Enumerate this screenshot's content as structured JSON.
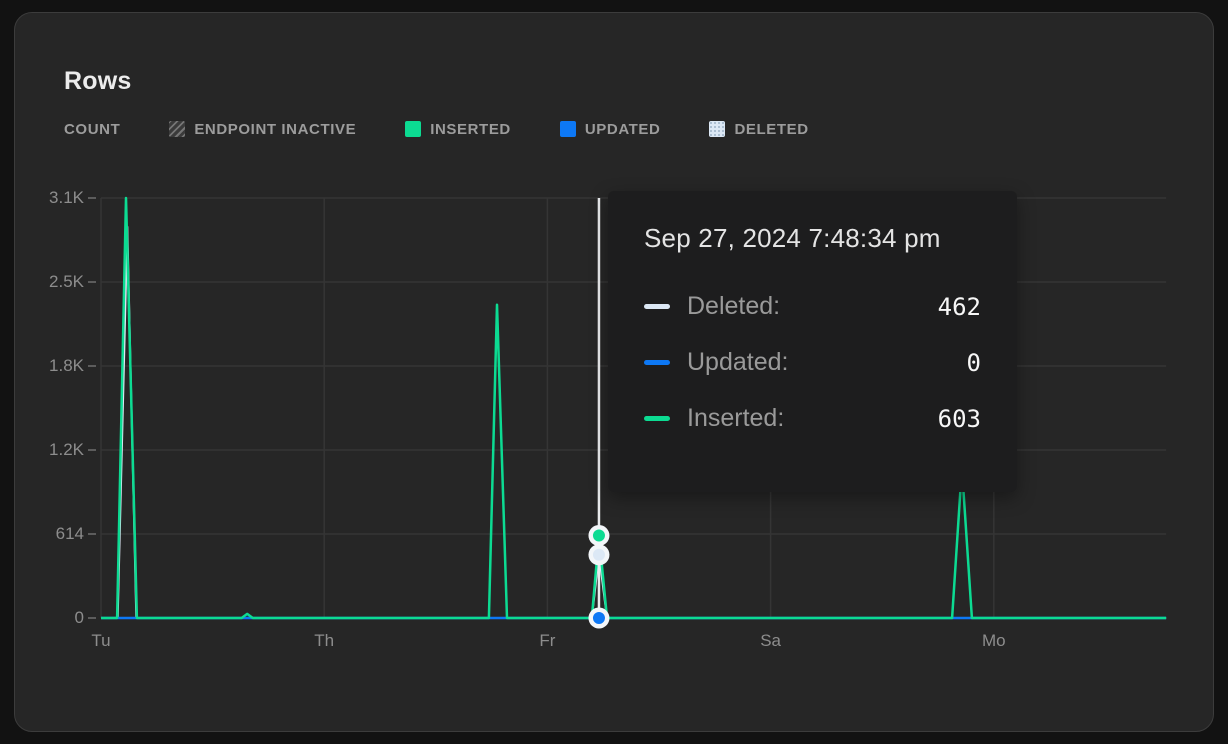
{
  "title": "Rows",
  "legend": {
    "items": [
      {
        "label": "COUNT",
        "swatch": "none",
        "color": null
      },
      {
        "label": "ENDPOINT INACTIVE",
        "swatch": "hatch",
        "color": "#757575"
      },
      {
        "label": "INSERTED",
        "swatch": "solid",
        "color": "#0cdb92"
      },
      {
        "label": "UPDATED",
        "swatch": "solid",
        "color": "#0d78f5"
      },
      {
        "label": "DELETED",
        "swatch": "dots",
        "color": "#dce8f5"
      }
    ]
  },
  "tooltip": {
    "title": "Sep 27, 2024 7:48:34 pm",
    "rows": [
      {
        "label": "Deleted:",
        "value": "462",
        "color": "#dce8f5"
      },
      {
        "label": "Updated:",
        "value": "0",
        "color": "#0d78f5"
      },
      {
        "label": "Inserted:",
        "value": "603",
        "color": "#0cdb92"
      }
    ]
  },
  "chart_data": {
    "type": "line",
    "title": "Rows",
    "xlabel": "",
    "ylabel": "COUNT",
    "grid": true,
    "legend_position": "top",
    "ylim": [
      0,
      3070
    ],
    "y_ticks": [
      {
        "v": 0,
        "label": "0"
      },
      {
        "v": 614,
        "label": "614"
      },
      {
        "v": 1228,
        "label": "1.2K"
      },
      {
        "v": 1842,
        "label": "1.8K"
      },
      {
        "v": 2456,
        "label": "2.5K"
      },
      {
        "v": 3070,
        "label": "3.1K"
      }
    ],
    "x_ticks": [
      {
        "u": 0,
        "label": "Tu"
      },
      {
        "u": 1,
        "label": "Th"
      },
      {
        "u": 2,
        "label": "Fr"
      },
      {
        "u": 3,
        "label": "Sa"
      },
      {
        "u": 4,
        "label": "Mo"
      }
    ],
    "series": [
      {
        "name": "Deleted",
        "color": "#dce8f5",
        "points": [
          [
            0,
            0
          ],
          [
            0.075,
            0
          ],
          [
            0.118,
            2860
          ],
          [
            0.158,
            0
          ],
          [
            2.199,
            0
          ],
          [
            2.231,
            462
          ],
          [
            2.267,
            0
          ],
          [
            4.772,
            0
          ]
        ]
      },
      {
        "name": "Updated",
        "color": "#0d78f5",
        "points": [
          [
            0,
            0
          ],
          [
            4.772,
            0
          ]
        ]
      },
      {
        "name": "Inserted",
        "color": "#0cdb92",
        "points": [
          [
            0,
            0
          ],
          [
            0.072,
            0
          ],
          [
            0.112,
            3070
          ],
          [
            0.161,
            0
          ],
          [
            0.63,
            0
          ],
          [
            0.655,
            30
          ],
          [
            0.68,
            0
          ],
          [
            1.738,
            0
          ],
          [
            1.774,
            2290
          ],
          [
            1.819,
            0
          ],
          [
            2.199,
            0
          ],
          [
            2.231,
            603
          ],
          [
            2.267,
            0
          ],
          [
            3.813,
            0
          ],
          [
            3.857,
            1100
          ],
          [
            3.902,
            0
          ],
          [
            4.772,
            0
          ]
        ]
      }
    ],
    "hover": {
      "u": 2.231,
      "datetime": "Sep 27, 2024 7:48:34 pm",
      "markers": [
        {
          "series": "Inserted",
          "value": 603
        },
        {
          "series": "Deleted",
          "value": 462
        },
        {
          "series": "Updated",
          "value": 0
        }
      ]
    },
    "colors": {
      "grid": "#353535",
      "tick": "#5c5c5c",
      "axis_text": "#8d8d8d",
      "crosshair": "#e9ebed",
      "marker_ring": "#f3f6f9"
    }
  }
}
